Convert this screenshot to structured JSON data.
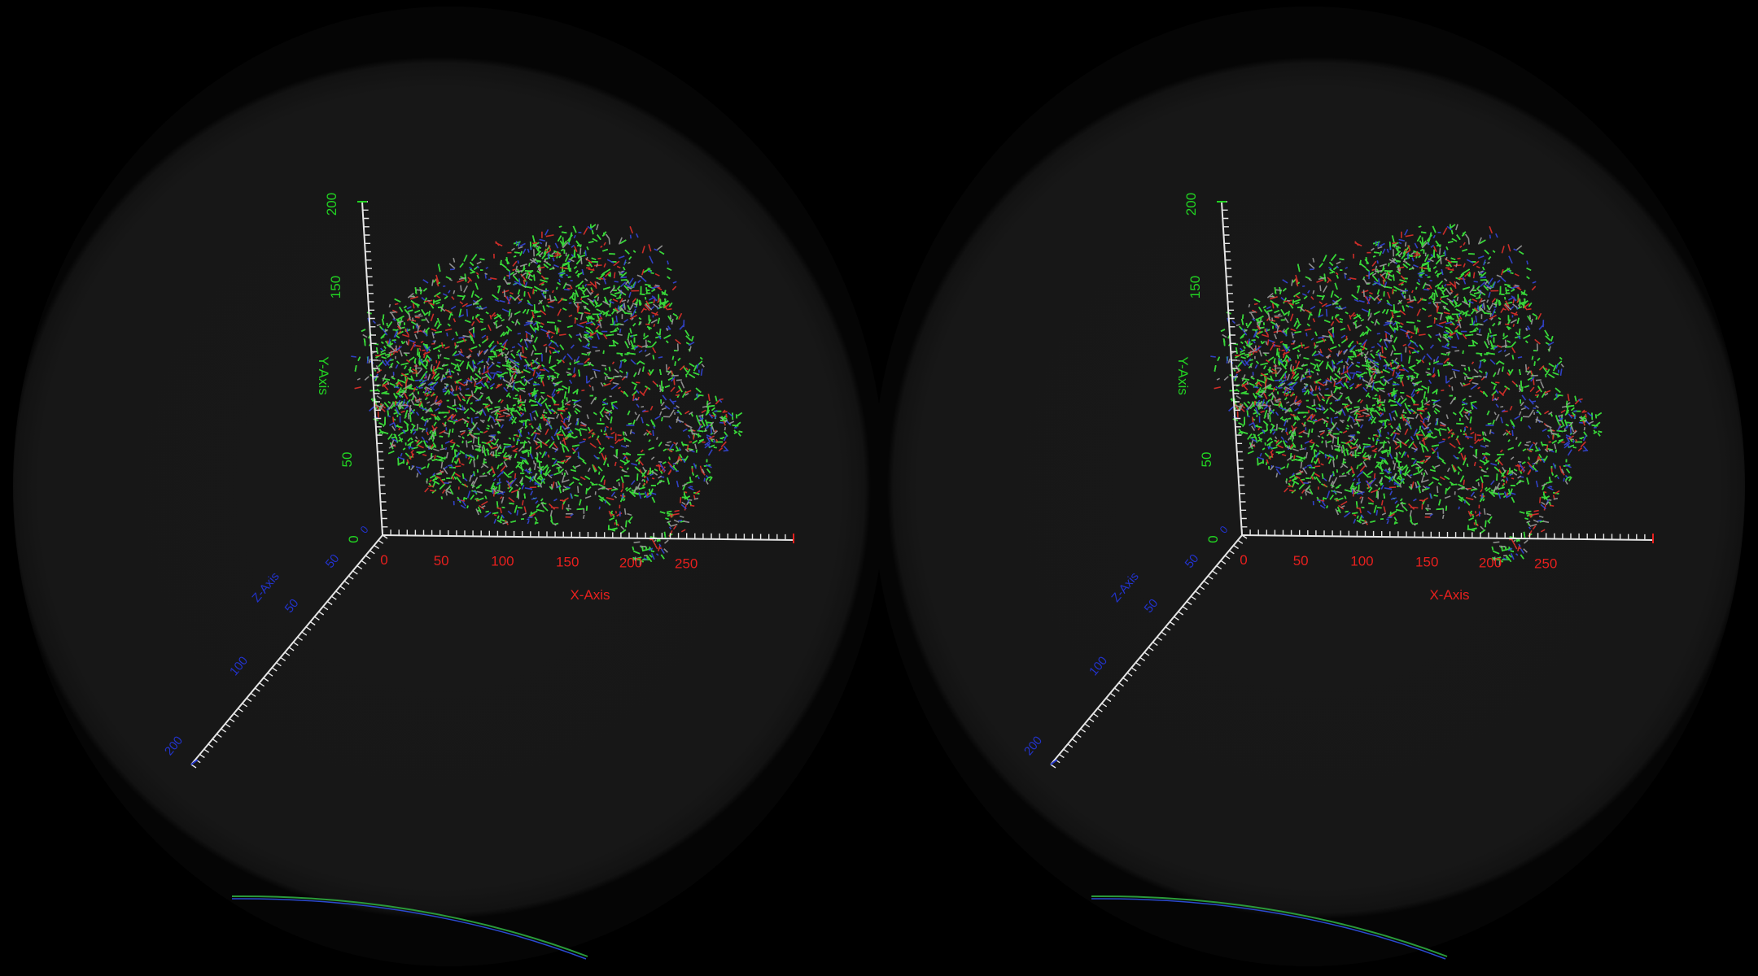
{
  "colors": {
    "background": "#000000",
    "lens": "#171717",
    "x_axis_labels": "#e8201e",
    "y_axis_labels": "#22d322",
    "z_axis_labels": "#2233cc",
    "axis_line": "#e6e6e6",
    "atom_green": "#39d63a",
    "atom_red": "#e0302a",
    "atom_blue": "#3346d8",
    "horizon_green": "#2a9a3a",
    "horizon_blue": "#2a4ad0"
  },
  "axes": {
    "x": {
      "title": "X-Axis",
      "ticks": [
        "0",
        "50",
        "100",
        "150",
        "200",
        "250"
      ]
    },
    "y": {
      "title": "Y-Axis",
      "ticks": [
        "0",
        "50",
        "150",
        "200"
      ]
    },
    "z": {
      "title": "Z-Axis",
      "ticks": [
        "0",
        "50",
        "50",
        "100",
        "200"
      ]
    }
  },
  "eyes": [
    {
      "name": "left-eye"
    },
    {
      "name": "right-eye"
    }
  ]
}
